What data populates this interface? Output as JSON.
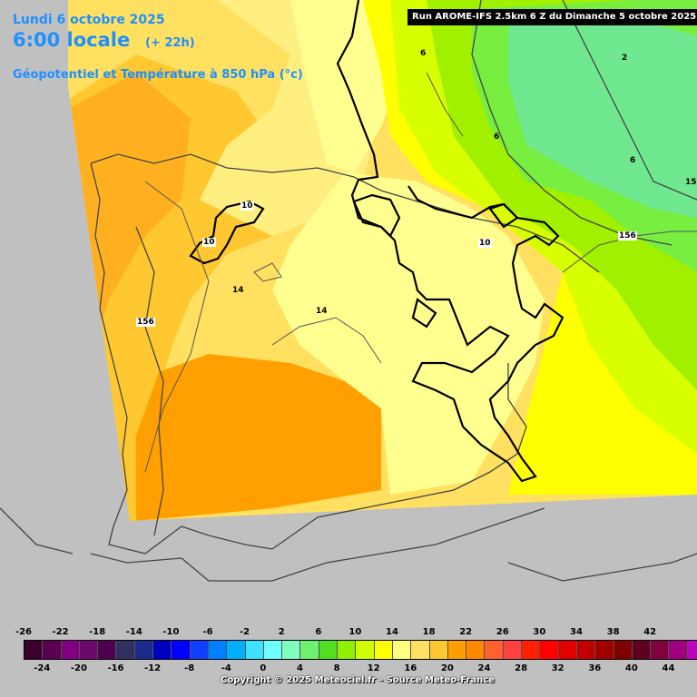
{
  "header": {
    "date": "Lundi 6 octobre 2025",
    "time": "6:00 locale",
    "lead": "(+ 22h)",
    "parameter": "Géopotentiel et Température à 850 hPa (°c)",
    "run": "Run AROME-IFS 2.5km 6 Z du Dimanche 5 octobre 2025"
  },
  "labels": [
    {
      "id": "t10-galicia",
      "text": "10"
    },
    {
      "id": "t10-leon",
      "text": "10"
    },
    {
      "id": "t10-east",
      "text": "10"
    },
    {
      "id": "t14-west",
      "text": "14"
    },
    {
      "id": "t14-center",
      "text": "14"
    },
    {
      "id": "t6-north",
      "text": "6"
    },
    {
      "id": "t6-center",
      "text": "6"
    },
    {
      "id": "t6-east",
      "text": "6"
    },
    {
      "id": "t2-ne",
      "text": "2"
    },
    {
      "id": "t15-edge",
      "text": "15"
    },
    {
      "id": "g156-east",
      "text": "156"
    },
    {
      "id": "g156-west",
      "text": "156"
    }
  ],
  "legend": {
    "colors": [
      "#3a0030",
      "#5a0050",
      "#800080",
      "#6a0a6a",
      "#500050",
      "#303060",
      "#1c2a8c",
      "#0000c0",
      "#0000ff",
      "#1040ff",
      "#0080ff",
      "#00b0ff",
      "#40e0ff",
      "#70ffff",
      "#80ffc0",
      "#70f070",
      "#50e020",
      "#90f000",
      "#d0ff00",
      "#ffff00",
      "#ffff80",
      "#ffe060",
      "#ffc830",
      "#ffa000",
      "#ff8800",
      "#ff6030",
      "#ff4040",
      "#ff2000",
      "#ff0000",
      "#e00000",
      "#c00000",
      "#a00000",
      "#800000",
      "#600020",
      "#800040",
      "#a00080",
      "#c000c0",
      "#e000e0",
      "#ff40ff",
      "#ff80ff"
    ],
    "top_ticks": [
      "-26",
      "-22",
      "-18",
      "-14",
      "-10",
      "-6",
      "-2",
      "2",
      "6",
      "10",
      "14",
      "18",
      "22",
      "26",
      "30",
      "34",
      "38",
      "42"
    ],
    "bottom_ticks": [
      "-24",
      "-20",
      "-16",
      "-12",
      "-8",
      "-4",
      "0",
      "4",
      "8",
      "12",
      "16",
      "20",
      "24",
      "28",
      "32",
      "36",
      "40",
      "44"
    ]
  },
  "copyright": "Copyright © 2025 Meteociel.fr - Source Meteo-France"
}
